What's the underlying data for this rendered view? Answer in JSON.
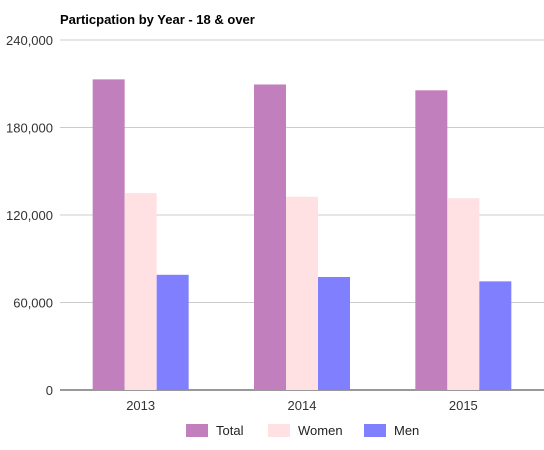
{
  "chart_data": {
    "type": "bar",
    "title": "Particpation by Year - 18 & over",
    "categories": [
      "2013",
      "2014",
      "2015"
    ],
    "series": [
      {
        "name": "Total",
        "color": "#c27fbd",
        "values": [
          213000,
          209500,
          205500
        ]
      },
      {
        "name": "Women",
        "color": "#ffe0e3",
        "values": [
          135000,
          132500,
          131500
        ]
      },
      {
        "name": "Men",
        "color": "#8080ff",
        "values": [
          79000,
          77500,
          74500
        ]
      }
    ],
    "y_ticks": [
      "0",
      "60,000",
      "120,000",
      "180,000",
      "240,000"
    ],
    "ylim": [
      0,
      240000
    ],
    "grid": true,
    "legend_position": "bottom"
  }
}
